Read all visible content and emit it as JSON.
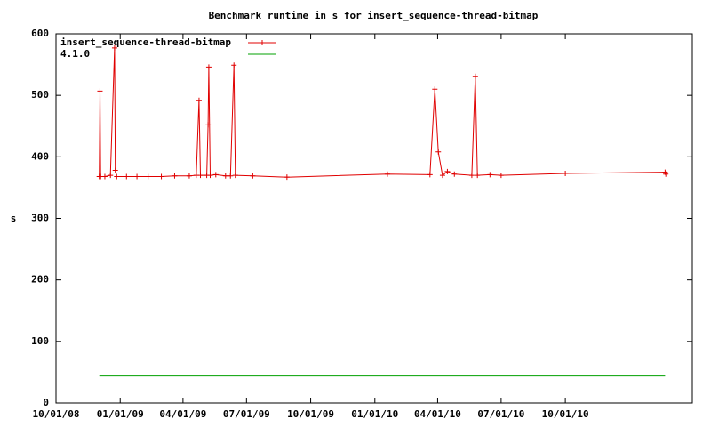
{
  "chart_data": {
    "type": "line",
    "title": "Benchmark runtime in s for insert_sequence-thread-bitmap",
    "y_label": "s",
    "xlim": [
      "10/01/08",
      "04/01/11"
    ],
    "xticks": [
      "10/01/08",
      "01/01/09",
      "04/01/09",
      "07/01/09",
      "10/01/09",
      "01/01/10",
      "04/01/10",
      "07/01/10",
      "10/01/10"
    ],
    "ylim": [
      0,
      600
    ],
    "yticks": [
      0,
      100,
      200,
      300,
      400,
      500,
      600
    ],
    "grid": false,
    "legend": "top-left",
    "series": [
      {
        "name": "insert_sequence-thread-bitmap",
        "color": "#e00000",
        "markers": true,
        "x": [
          "12/02/08",
          "12/03/08",
          "12/04/08",
          "12/10/08",
          "12/18/08",
          "12/24/08",
          "12/25/08",
          "12/27/08",
          "01/10/09",
          "01/25/09",
          "02/10/09",
          "03/01/09",
          "03/20/09",
          "04/10/09",
          "04/20/09",
          "04/24/09",
          "04/26/09",
          "05/05/09",
          "05/07/09",
          "05/08/09",
          "05/10/09",
          "05/18/09",
          "06/01/09",
          "06/08/09",
          "06/13/09",
          "06/15/09",
          "07/10/09",
          "08/28/09",
          "01/19/10",
          "03/21/10",
          "03/28/10",
          "04/02/10",
          "04/08/10",
          "04/15/10",
          "04/25/10",
          "05/20/10",
          "05/25/10",
          "05/28/10",
          "06/15/10",
          "07/01/10",
          "10/01/10",
          "02/21/11",
          "02/22/11"
        ],
        "values": [
          368,
          507,
          368,
          368,
          370,
          577,
          378,
          368,
          368,
          368,
          368,
          368,
          369,
          369,
          370,
          492,
          370,
          370,
          452,
          546,
          370,
          371,
          369,
          369,
          549,
          370,
          369,
          367,
          372,
          371,
          510,
          408,
          370,
          376,
          372,
          370,
          531,
          370,
          371,
          370,
          373,
          375,
          372
        ]
      },
      {
        "name": "4.1.0",
        "color": "#00a000",
        "markers": false,
        "x": [
          "12/02/08",
          "02/21/11"
        ],
        "values": [
          44,
          44
        ]
      }
    ]
  }
}
